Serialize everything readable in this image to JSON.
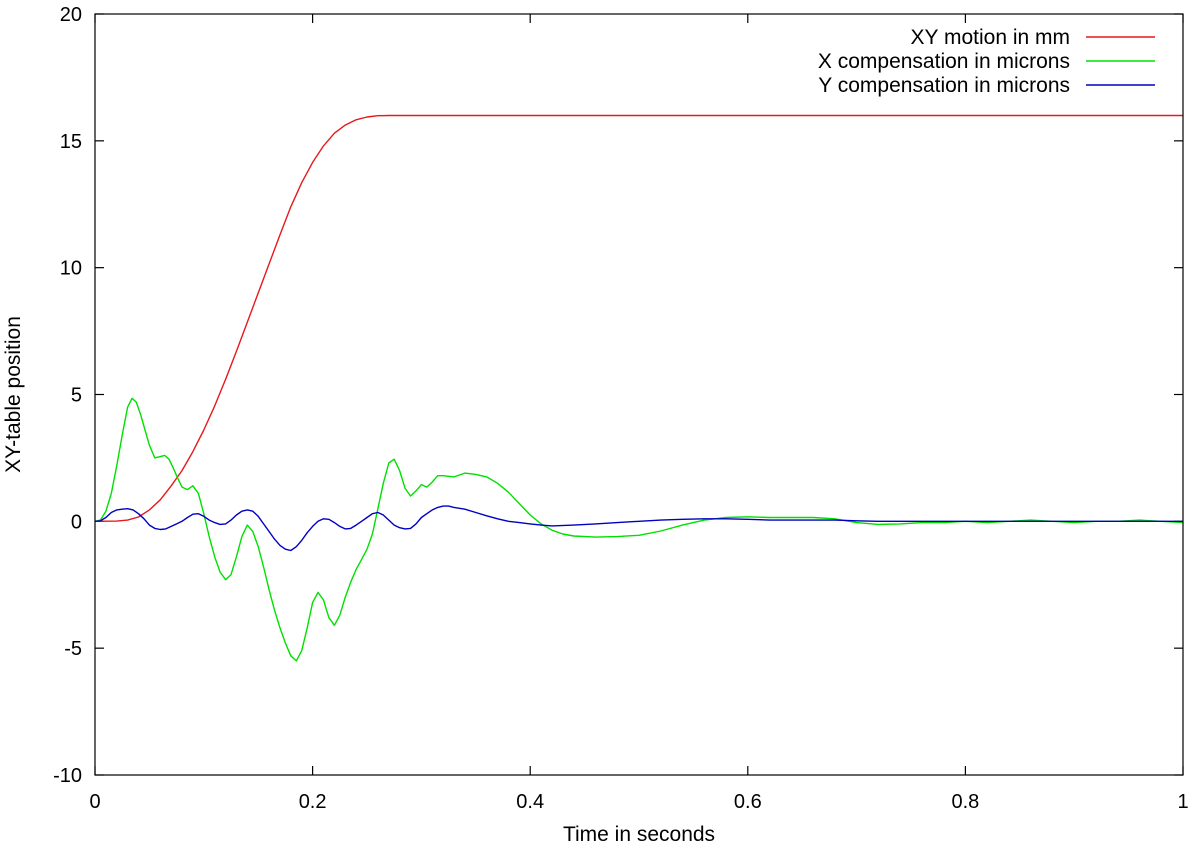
{
  "chart_data": {
    "type": "line",
    "title": "",
    "xlabel": "Time in seconds",
    "ylabel": "XY-table position",
    "xlim": [
      0,
      1
    ],
    "ylim": [
      -10,
      20
    ],
    "x_ticks": [
      {
        "value": 0,
        "label": "0"
      },
      {
        "value": 0.2,
        "label": "0.2"
      },
      {
        "value": 0.4,
        "label": "0.4"
      },
      {
        "value": 0.6,
        "label": "0.6"
      },
      {
        "value": 0.8,
        "label": "0.8"
      },
      {
        "value": 1,
        "label": "1"
      }
    ],
    "y_ticks": [
      {
        "value": -10,
        "label": "-10"
      },
      {
        "value": -5,
        "label": "-5"
      },
      {
        "value": 0,
        "label": "0"
      },
      {
        "value": 5,
        "label": "5"
      },
      {
        "value": 10,
        "label": "10"
      },
      {
        "value": 15,
        "label": "15"
      },
      {
        "value": 20,
        "label": "20"
      }
    ],
    "grid": false,
    "legend_position": "top-right",
    "series": [
      {
        "name": "XY motion in mm",
        "color": "#e41a1c",
        "points": [
          [
            0,
            0
          ],
          [
            0.02,
            0.01
          ],
          [
            0.03,
            0.05
          ],
          [
            0.04,
            0.17
          ],
          [
            0.05,
            0.45
          ],
          [
            0.06,
            0.85
          ],
          [
            0.07,
            1.4
          ],
          [
            0.08,
            2.0
          ],
          [
            0.09,
            2.75
          ],
          [
            0.1,
            3.6
          ],
          [
            0.11,
            4.55
          ],
          [
            0.12,
            5.6
          ],
          [
            0.13,
            6.7
          ],
          [
            0.14,
            7.85
          ],
          [
            0.15,
            9.0
          ],
          [
            0.16,
            10.15
          ],
          [
            0.17,
            11.3
          ],
          [
            0.18,
            12.4
          ],
          [
            0.19,
            13.35
          ],
          [
            0.2,
            14.15
          ],
          [
            0.21,
            14.8
          ],
          [
            0.22,
            15.3
          ],
          [
            0.23,
            15.62
          ],
          [
            0.24,
            15.83
          ],
          [
            0.25,
            15.94
          ],
          [
            0.26,
            15.99
          ],
          [
            0.27,
            16.0
          ],
          [
            0.4,
            16.0
          ],
          [
            0.6,
            16.0
          ],
          [
            0.8,
            16.0
          ],
          [
            1.0,
            16.0
          ]
        ]
      },
      {
        "name": "X compensation in microns",
        "color": "#00e000",
        "points": [
          [
            0,
            0
          ],
          [
            0.005,
            0.05
          ],
          [
            0.01,
            0.4
          ],
          [
            0.015,
            1.1
          ],
          [
            0.02,
            2.2
          ],
          [
            0.025,
            3.4
          ],
          [
            0.03,
            4.5
          ],
          [
            0.034,
            4.85
          ],
          [
            0.038,
            4.7
          ],
          [
            0.042,
            4.2
          ],
          [
            0.046,
            3.6
          ],
          [
            0.05,
            3.0
          ],
          [
            0.055,
            2.5
          ],
          [
            0.06,
            2.55
          ],
          [
            0.064,
            2.6
          ],
          [
            0.068,
            2.45
          ],
          [
            0.072,
            2.1
          ],
          [
            0.076,
            1.7
          ],
          [
            0.08,
            1.35
          ],
          [
            0.085,
            1.25
          ],
          [
            0.09,
            1.4
          ],
          [
            0.095,
            1.1
          ],
          [
            0.1,
            0.3
          ],
          [
            0.105,
            -0.6
          ],
          [
            0.11,
            -1.4
          ],
          [
            0.115,
            -2.0
          ],
          [
            0.12,
            -2.3
          ],
          [
            0.125,
            -2.1
          ],
          [
            0.13,
            -1.4
          ],
          [
            0.135,
            -0.6
          ],
          [
            0.14,
            -0.15
          ],
          [
            0.145,
            -0.4
          ],
          [
            0.15,
            -1.0
          ],
          [
            0.155,
            -1.8
          ],
          [
            0.16,
            -2.7
          ],
          [
            0.165,
            -3.5
          ],
          [
            0.17,
            -4.2
          ],
          [
            0.175,
            -4.8
          ],
          [
            0.18,
            -5.3
          ],
          [
            0.185,
            -5.5
          ],
          [
            0.19,
            -5.1
          ],
          [
            0.195,
            -4.2
          ],
          [
            0.2,
            -3.2
          ],
          [
            0.205,
            -2.8
          ],
          [
            0.21,
            -3.1
          ],
          [
            0.215,
            -3.8
          ],
          [
            0.22,
            -4.1
          ],
          [
            0.225,
            -3.7
          ],
          [
            0.23,
            -3.0
          ],
          [
            0.235,
            -2.4
          ],
          [
            0.24,
            -1.9
          ],
          [
            0.245,
            -1.5
          ],
          [
            0.25,
            -1.1
          ],
          [
            0.255,
            -0.5
          ],
          [
            0.26,
            0.5
          ],
          [
            0.265,
            1.5
          ],
          [
            0.27,
            2.3
          ],
          [
            0.275,
            2.45
          ],
          [
            0.28,
            2.0
          ],
          [
            0.285,
            1.3
          ],
          [
            0.29,
            1.0
          ],
          [
            0.295,
            1.2
          ],
          [
            0.3,
            1.45
          ],
          [
            0.305,
            1.35
          ],
          [
            0.31,
            1.55
          ],
          [
            0.315,
            1.8
          ],
          [
            0.32,
            1.8
          ],
          [
            0.33,
            1.75
          ],
          [
            0.34,
            1.9
          ],
          [
            0.35,
            1.85
          ],
          [
            0.36,
            1.75
          ],
          [
            0.37,
            1.5
          ],
          [
            0.38,
            1.15
          ],
          [
            0.39,
            0.7
          ],
          [
            0.4,
            0.25
          ],
          [
            0.41,
            -0.1
          ],
          [
            0.42,
            -0.35
          ],
          [
            0.43,
            -0.5
          ],
          [
            0.44,
            -0.58
          ],
          [
            0.46,
            -0.62
          ],
          [
            0.48,
            -0.6
          ],
          [
            0.5,
            -0.55
          ],
          [
            0.52,
            -0.38
          ],
          [
            0.54,
            -0.15
          ],
          [
            0.56,
            0.05
          ],
          [
            0.58,
            0.15
          ],
          [
            0.6,
            0.18
          ],
          [
            0.62,
            0.15
          ],
          [
            0.64,
            0.15
          ],
          [
            0.66,
            0.15
          ],
          [
            0.68,
            0.1
          ],
          [
            0.7,
            -0.05
          ],
          [
            0.72,
            -0.12
          ],
          [
            0.74,
            -0.1
          ],
          [
            0.76,
            -0.05
          ],
          [
            0.78,
            -0.05
          ],
          [
            0.8,
            0
          ],
          [
            0.82,
            -0.05
          ],
          [
            0.84,
            0
          ],
          [
            0.86,
            0.05
          ],
          [
            0.88,
            0
          ],
          [
            0.9,
            -0.05
          ],
          [
            0.92,
            0
          ],
          [
            0.94,
            0
          ],
          [
            0.96,
            0.05
          ],
          [
            0.98,
            0
          ],
          [
            1.0,
            -0.05
          ]
        ]
      },
      {
        "name": "Y compensation in microns",
        "color": "#0000c0",
        "points": [
          [
            0,
            0
          ],
          [
            0.005,
            0.02
          ],
          [
            0.01,
            0.15
          ],
          [
            0.015,
            0.35
          ],
          [
            0.02,
            0.45
          ],
          [
            0.025,
            0.48
          ],
          [
            0.03,
            0.5
          ],
          [
            0.035,
            0.45
          ],
          [
            0.04,
            0.3
          ],
          [
            0.045,
            0.1
          ],
          [
            0.05,
            -0.15
          ],
          [
            0.055,
            -0.28
          ],
          [
            0.06,
            -0.32
          ],
          [
            0.065,
            -0.3
          ],
          [
            0.07,
            -0.2
          ],
          [
            0.075,
            -0.1
          ],
          [
            0.08,
            0.0
          ],
          [
            0.085,
            0.15
          ],
          [
            0.09,
            0.28
          ],
          [
            0.095,
            0.3
          ],
          [
            0.1,
            0.2
          ],
          [
            0.105,
            0.05
          ],
          [
            0.11,
            -0.05
          ],
          [
            0.115,
            -0.12
          ],
          [
            0.12,
            -0.1
          ],
          [
            0.125,
            0.05
          ],
          [
            0.13,
            0.25
          ],
          [
            0.135,
            0.4
          ],
          [
            0.14,
            0.45
          ],
          [
            0.145,
            0.4
          ],
          [
            0.15,
            0.2
          ],
          [
            0.155,
            -0.1
          ],
          [
            0.16,
            -0.4
          ],
          [
            0.165,
            -0.7
          ],
          [
            0.17,
            -0.95
          ],
          [
            0.175,
            -1.1
          ],
          [
            0.18,
            -1.15
          ],
          [
            0.185,
            -1.0
          ],
          [
            0.19,
            -0.75
          ],
          [
            0.195,
            -0.45
          ],
          [
            0.2,
            -0.2
          ],
          [
            0.205,
            0.0
          ],
          [
            0.21,
            0.1
          ],
          [
            0.215,
            0.08
          ],
          [
            0.22,
            -0.05
          ],
          [
            0.225,
            -0.2
          ],
          [
            0.23,
            -0.3
          ],
          [
            0.235,
            -0.28
          ],
          [
            0.24,
            -0.15
          ],
          [
            0.245,
            0.0
          ],
          [
            0.25,
            0.15
          ],
          [
            0.255,
            0.3
          ],
          [
            0.26,
            0.35
          ],
          [
            0.265,
            0.25
          ],
          [
            0.27,
            0.05
          ],
          [
            0.275,
            -0.15
          ],
          [
            0.28,
            -0.25
          ],
          [
            0.285,
            -0.3
          ],
          [
            0.29,
            -0.28
          ],
          [
            0.295,
            -0.1
          ],
          [
            0.3,
            0.15
          ],
          [
            0.305,
            0.3
          ],
          [
            0.31,
            0.45
          ],
          [
            0.315,
            0.55
          ],
          [
            0.32,
            0.6
          ],
          [
            0.325,
            0.6
          ],
          [
            0.33,
            0.55
          ],
          [
            0.34,
            0.48
          ],
          [
            0.35,
            0.35
          ],
          [
            0.36,
            0.22
          ],
          [
            0.37,
            0.1
          ],
          [
            0.38,
            0.0
          ],
          [
            0.39,
            -0.05
          ],
          [
            0.4,
            -0.1
          ],
          [
            0.41,
            -0.15
          ],
          [
            0.42,
            -0.18
          ],
          [
            0.44,
            -0.15
          ],
          [
            0.46,
            -0.1
          ],
          [
            0.48,
            -0.05
          ],
          [
            0.5,
            0.0
          ],
          [
            0.52,
            0.05
          ],
          [
            0.54,
            0.08
          ],
          [
            0.56,
            0.1
          ],
          [
            0.58,
            0.1
          ],
          [
            0.6,
            0.08
          ],
          [
            0.62,
            0.05
          ],
          [
            0.64,
            0.05
          ],
          [
            0.66,
            0.05
          ],
          [
            0.68,
            0.05
          ],
          [
            0.7,
            0.02
          ],
          [
            0.72,
            0.0
          ],
          [
            0.74,
            0.0
          ],
          [
            0.76,
            0.0
          ],
          [
            0.78,
            0.0
          ],
          [
            0.8,
            0.0
          ],
          [
            0.82,
            0.0
          ],
          [
            0.84,
            0.0
          ],
          [
            0.86,
            0.0
          ],
          [
            0.88,
            0.0
          ],
          [
            0.9,
            0.0
          ],
          [
            0.92,
            0.0
          ],
          [
            0.94,
            0.0
          ],
          [
            0.96,
            0.0
          ],
          [
            0.98,
            0.0
          ],
          [
            1.0,
            0.0
          ]
        ]
      }
    ]
  }
}
